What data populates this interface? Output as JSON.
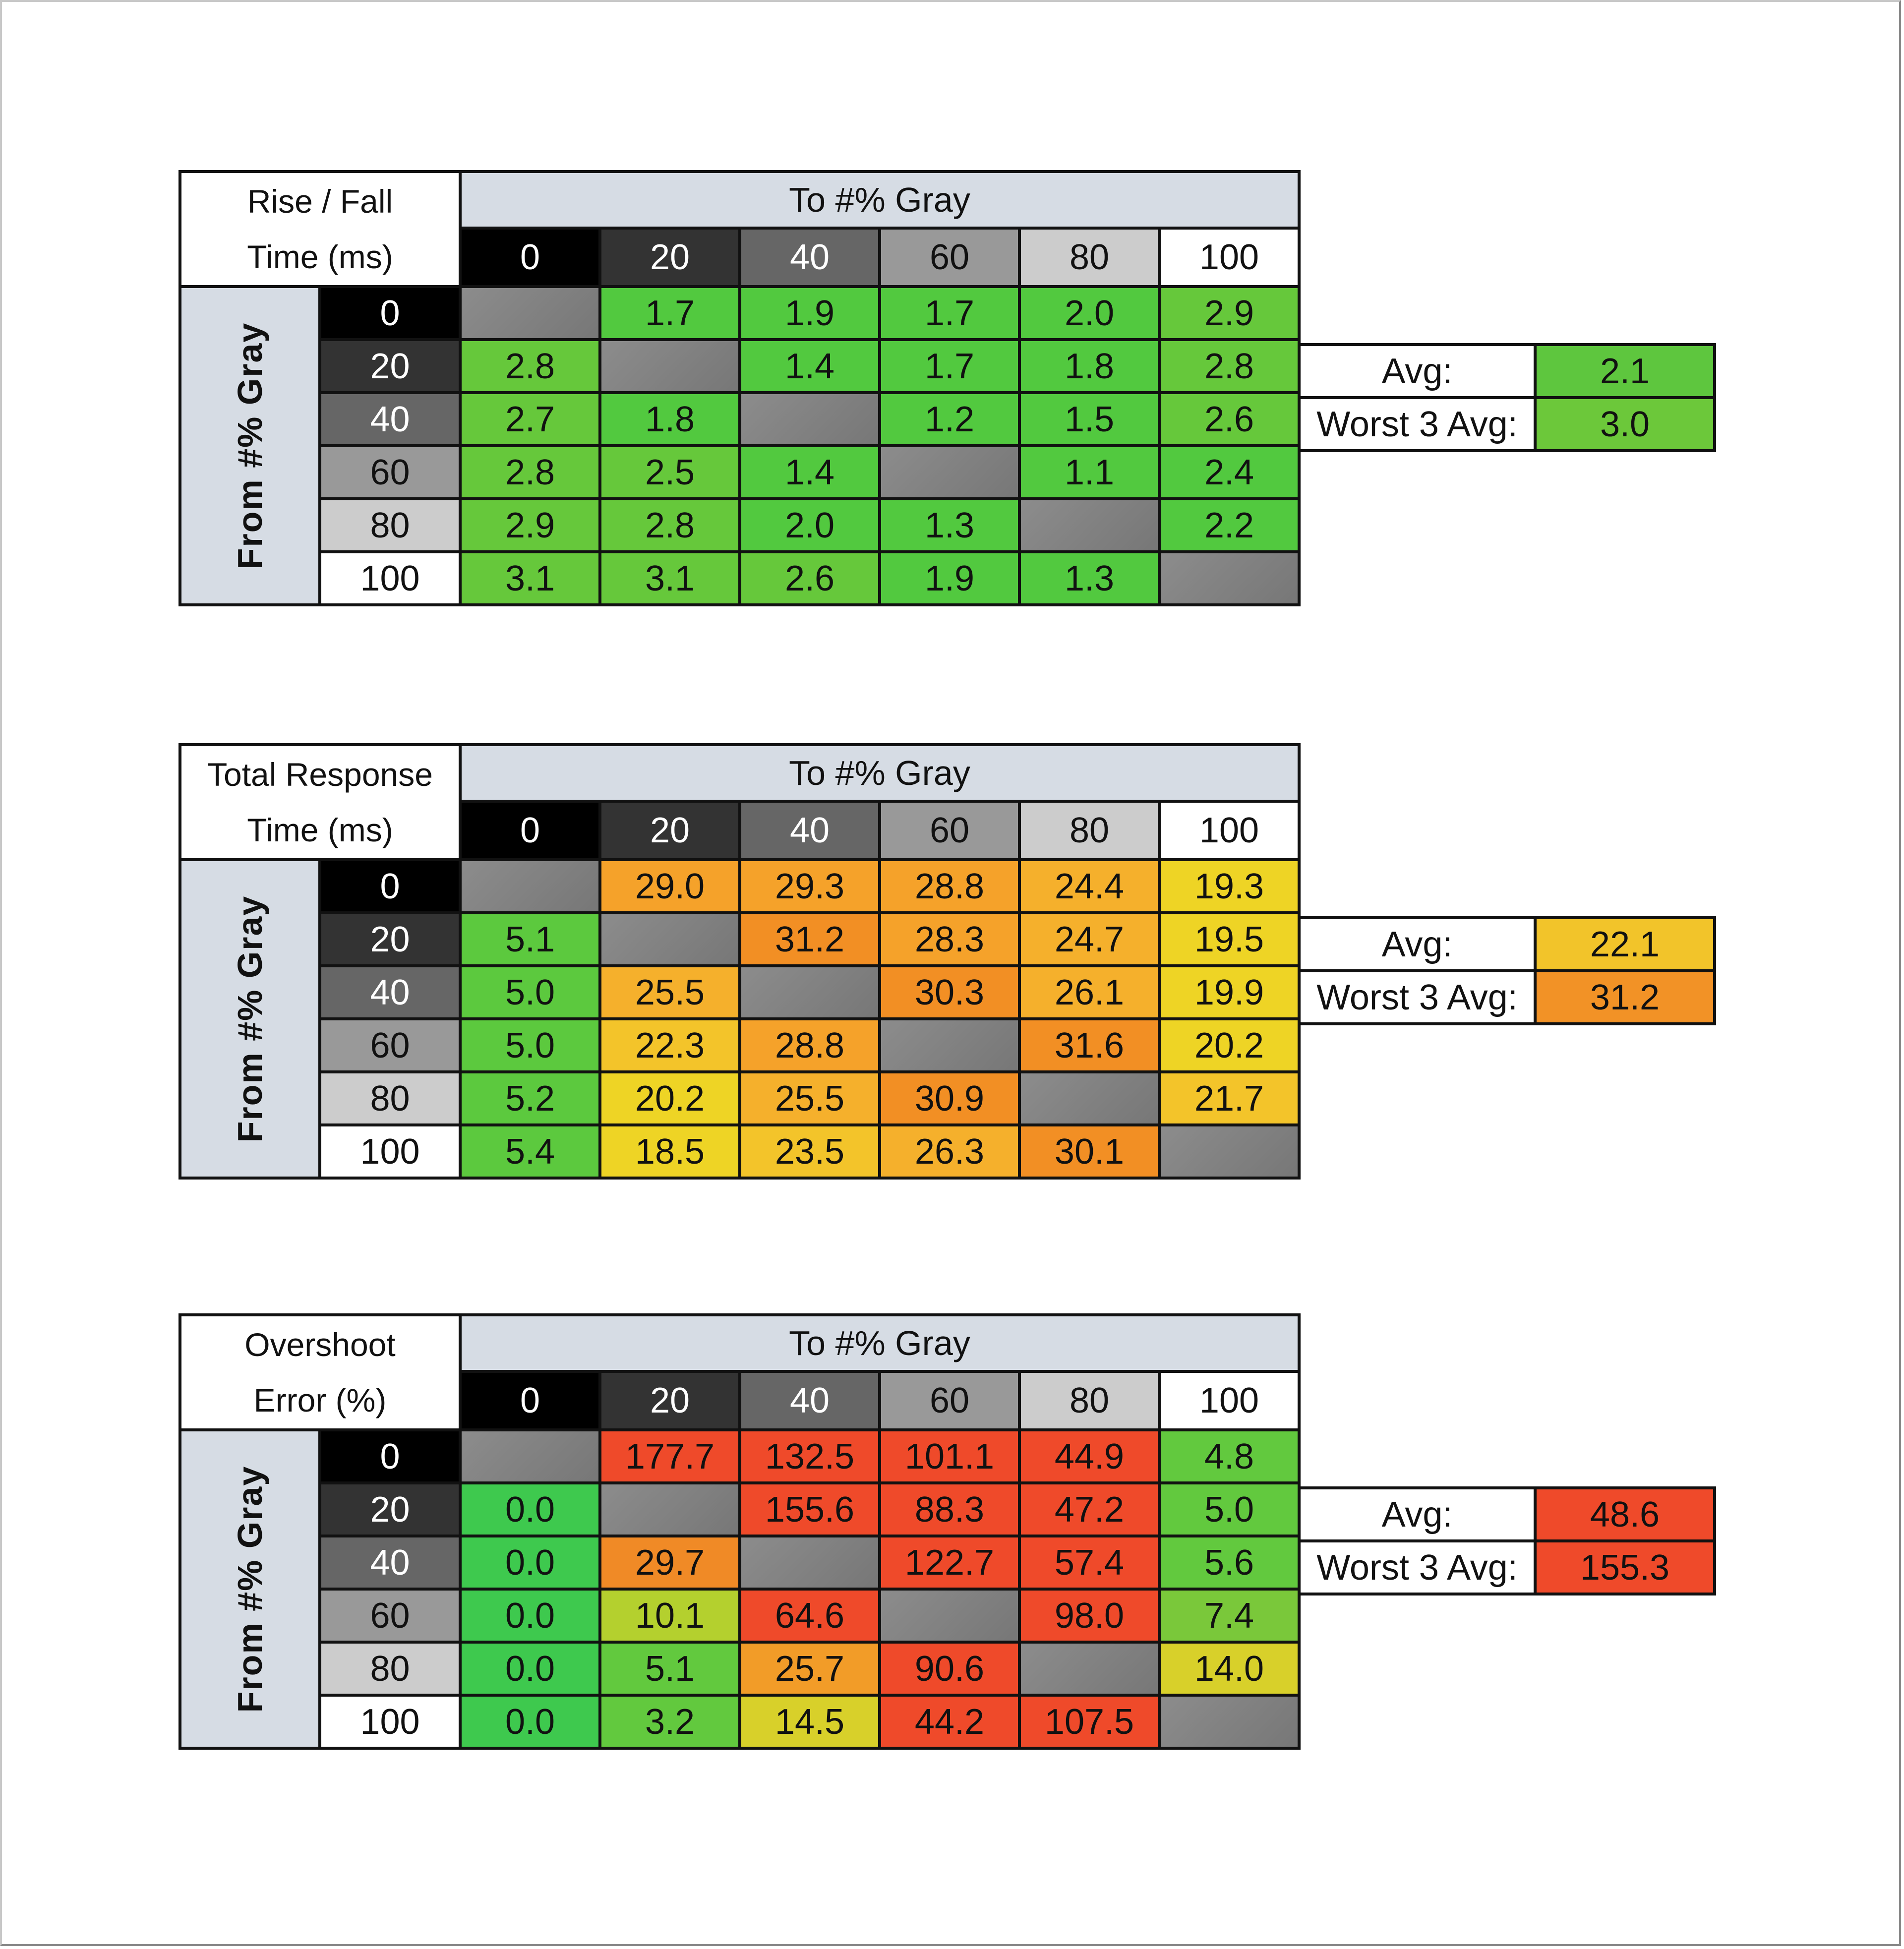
{
  "chart_data": [
    {
      "type": "heatmap",
      "title_lines": [
        "Rise / Fall",
        "Time (ms)"
      ],
      "col_axis_label": "To #% Gray",
      "row_axis_label": "From #% Gray",
      "columns": [
        "0",
        "20",
        "40",
        "60",
        "80",
        "100"
      ],
      "rows": [
        "0",
        "20",
        "40",
        "60",
        "80",
        "100"
      ],
      "values": [
        [
          null,
          1.7,
          1.9,
          1.7,
          2.0,
          2.9
        ],
        [
          2.8,
          null,
          1.4,
          1.7,
          1.8,
          2.8
        ],
        [
          2.7,
          1.8,
          null,
          1.2,
          1.5,
          2.6
        ],
        [
          2.8,
          2.5,
          1.4,
          null,
          1.1,
          2.4
        ],
        [
          2.9,
          2.8,
          2.0,
          1.3,
          null,
          2.2
        ],
        [
          3.1,
          3.1,
          2.6,
          1.9,
          1.3,
          null
        ]
      ],
      "display": [
        [
          "",
          "1.7",
          "1.9",
          "1.7",
          "2.0",
          "2.9"
        ],
        [
          "2.8",
          "",
          "1.4",
          "1.7",
          "1.8",
          "2.8"
        ],
        [
          "2.7",
          "1.8",
          "",
          "1.2",
          "1.5",
          "2.6"
        ],
        [
          "2.8",
          "2.5",
          "1.4",
          "",
          "1.1",
          "2.4"
        ],
        [
          "2.9",
          "2.8",
          "2.0",
          "1.3",
          "",
          "2.2"
        ],
        [
          "3.1",
          "3.1",
          "2.6",
          "1.9",
          "1.3",
          ""
        ]
      ],
      "summary": {
        "avg_label": "Avg:",
        "avg": "2.1",
        "worst_label": "Worst 3 Avg:",
        "worst": "3.0",
        "avg_color": "#5ec63e",
        "worst_color": "#6cc83a"
      },
      "color_scale": [
        [
          0,
          "#52c93f"
        ],
        [
          2.5,
          "#66c83b"
        ]
      ]
    },
    {
      "type": "heatmap",
      "title_lines": [
        "Total Response",
        "Time (ms)"
      ],
      "col_axis_label": "To #% Gray",
      "row_axis_label": "From #% Gray",
      "columns": [
        "0",
        "20",
        "40",
        "60",
        "80",
        "100"
      ],
      "rows": [
        "0",
        "20",
        "40",
        "60",
        "80",
        "100"
      ],
      "values": [
        [
          null,
          29.0,
          29.3,
          28.8,
          24.4,
          19.3
        ],
        [
          5.1,
          null,
          31.2,
          28.3,
          24.7,
          19.5
        ],
        [
          5.0,
          25.5,
          null,
          30.3,
          26.1,
          19.9
        ],
        [
          5.0,
          22.3,
          28.8,
          null,
          31.6,
          20.2
        ],
        [
          5.2,
          20.2,
          25.5,
          30.9,
          null,
          21.7
        ],
        [
          5.4,
          18.5,
          23.5,
          26.3,
          30.1,
          null
        ]
      ],
      "display": [
        [
          "",
          "29.0",
          "29.3",
          "28.8",
          "24.4",
          "19.3"
        ],
        [
          "5.1",
          "",
          "31.2",
          "28.3",
          "24.7",
          "19.5"
        ],
        [
          "5.0",
          "25.5",
          "",
          "30.3",
          "26.1",
          "19.9"
        ],
        [
          "5.0",
          "22.3",
          "28.8",
          "",
          "31.6",
          "20.2"
        ],
        [
          "5.2",
          "20.2",
          "25.5",
          "30.9",
          "",
          "21.7"
        ],
        [
          "5.4",
          "18.5",
          "23.5",
          "26.3",
          "30.1",
          ""
        ]
      ],
      "summary": {
        "avg_label": "Avg:",
        "avg": "22.1",
        "worst_label": "Worst 3 Avg:",
        "worst": "31.2",
        "avg_color": "#f2c42a",
        "worst_color": "#f29226"
      },
      "color_scale": [
        [
          0,
          "#5cc93e"
        ],
        [
          15,
          "#eed425"
        ],
        [
          21,
          "#f3c42a"
        ],
        [
          24,
          "#f5b02c"
        ],
        [
          27,
          "#f5a22a"
        ],
        [
          30,
          "#f28f24"
        ]
      ]
    },
    {
      "type": "heatmap",
      "title_lines": [
        "Overshoot",
        "Error (%)"
      ],
      "col_axis_label": "To #% Gray",
      "row_axis_label": "From #% Gray",
      "columns": [
        "0",
        "20",
        "40",
        "60",
        "80",
        "100"
      ],
      "rows": [
        "0",
        "20",
        "40",
        "60",
        "80",
        "100"
      ],
      "values": [
        [
          null,
          177.7,
          132.5,
          101.1,
          44.9,
          4.8
        ],
        [
          0.0,
          null,
          155.6,
          88.3,
          47.2,
          5.0
        ],
        [
          0.0,
          29.7,
          null,
          122.7,
          57.4,
          5.6
        ],
        [
          0.0,
          10.1,
          64.6,
          null,
          98.0,
          7.4
        ],
        [
          0.0,
          5.1,
          25.7,
          90.6,
          null,
          14.0
        ],
        [
          0.0,
          3.2,
          14.5,
          44.2,
          107.5,
          null
        ]
      ],
      "display": [
        [
          "",
          "177.7",
          "132.5",
          "101.1",
          "44.9",
          "4.8"
        ],
        [
          "0.0",
          "",
          "155.6",
          "88.3",
          "47.2",
          "5.0"
        ],
        [
          "0.0",
          "29.7",
          "",
          "122.7",
          "57.4",
          "5.6"
        ],
        [
          "0.0",
          "10.1",
          "64.6",
          "",
          "98.0",
          "7.4"
        ],
        [
          "0.0",
          "5.1",
          "25.7",
          "90.6",
          "",
          "14.0"
        ],
        [
          "0.0",
          "3.2",
          "14.5",
          "44.2",
          "107.5",
          ""
        ]
      ],
      "summary": {
        "avg_label": "Avg:",
        "avg": "48.6",
        "worst_label": "Worst 3 Avg:",
        "worst": "155.3",
        "avg_color": "#ef4a2a",
        "worst_color": "#ef4a2a"
      },
      "color_scale": [
        [
          0,
          "#3ec94e"
        ],
        [
          3,
          "#62c93e"
        ],
        [
          7,
          "#7ac83a"
        ],
        [
          10,
          "#b4d02e"
        ],
        [
          14,
          "#d8d02a"
        ],
        [
          25,
          "#f29c28"
        ],
        [
          29,
          "#f08a26"
        ],
        [
          40,
          "#ef4a2a"
        ]
      ]
    }
  ],
  "header_colors": [
    "#000000",
    "#333333",
    "#666666",
    "#999999",
    "#cccccc",
    "#ffffff"
  ],
  "header_text_colors": [
    "#ffffff",
    "#ffffff",
    "#ffffff",
    "#111111",
    "#111111",
    "#111111"
  ],
  "header_bg": "#d6dce4",
  "diagonal_color": "#808080"
}
